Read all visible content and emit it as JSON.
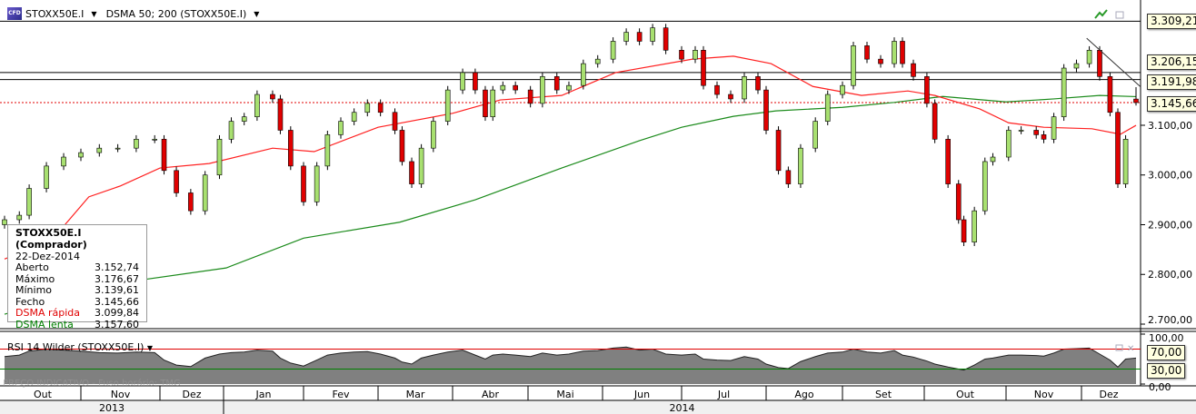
{
  "header": {
    "symbol": "STOXX50E.I",
    "indicator": "DSMA 50; 200 (STOXX50E.I)"
  },
  "legend": {
    "title": "STOXX50E.I (Comprador)",
    "date": "22-Dez-2014",
    "rows": [
      {
        "label": "Aberto",
        "value": "3.152,74"
      },
      {
        "label": "Máximo",
        "value": "3.176,67"
      },
      {
        "label": "Mínimo",
        "value": "3.139,61"
      },
      {
        "label": "Fecho",
        "value": "3.145,66"
      },
      {
        "label": "DSMA rápida",
        "value": "3.099,84"
      },
      {
        "label": "DSMA lenta",
        "value": "3.157,60"
      }
    ]
  },
  "price_tags": [
    "3.309,21",
    "3.206,15",
    "3.191,98",
    "3.145,66"
  ],
  "rsi": {
    "title": "RSI 14 Wilder (STOXX50E.I)",
    "ticks": [
      "100,00",
      "0,00"
    ],
    "tags": [
      "70,00",
      "30,00"
    ]
  },
  "watermark": "PREÇO INDICATIVO - Fuso horário: TMG",
  "months": [
    "Out",
    "Nov",
    "Dez",
    "Jan",
    "Fev",
    "Mar",
    "Abr",
    "Mai",
    "Jun",
    "Jul",
    "Ago",
    "Set",
    "Out",
    "Nov",
    "Dez"
  ],
  "years": [
    "2013",
    "2014"
  ],
  "colors": {
    "up": "#a8e070",
    "down": "#e00000",
    "fast_ma": "#ff2020",
    "slow_ma": "#1a8a1a",
    "rsi_fill": "#808080"
  },
  "chart_data": {
    "type": "candlestick",
    "ylim": [
      2700,
      3352
    ],
    "yticks": [
      "2.700,00",
      "2.800,00",
      "2.900,00",
      "3.000,00",
      "3.100,00"
    ],
    "ytick_values": [
      2700,
      2800,
      2900,
      3000,
      3100
    ],
    "hlines": [
      3309.21,
      3206.15,
      3191.98
    ],
    "last_close_line": 3145.66,
    "last": {
      "date": "2014-12-22",
      "open": 3152.74,
      "high": 3176.67,
      "low": 3139.61,
      "close": 3145.66
    },
    "trendline": [
      [
        "2014-12-03",
        3275
      ],
      [
        "2014-12-22",
        3191.98
      ]
    ],
    "points": [
      [
        "2013-10-01",
        2910,
        55
      ],
      [
        "2013-10-07",
        2919,
        58
      ],
      [
        "2013-10-11",
        2973,
        66
      ],
      [
        "2013-10-18",
        3018,
        70
      ],
      [
        "2013-10-25",
        3036,
        68
      ],
      [
        "2013-11-01",
        3045,
        66
      ],
      [
        "2013-11-08",
        3054,
        63
      ],
      [
        "2013-11-15",
        3054,
        62
      ],
      [
        "2013-11-22",
        3072,
        64
      ],
      [
        "2013-11-29",
        3072,
        63
      ],
      [
        "2013-12-03",
        3009,
        48
      ],
      [
        "2013-12-09",
        2964,
        38
      ],
      [
        "2013-12-16",
        2928,
        35
      ],
      [
        "2013-12-23",
        3000,
        52
      ],
      [
        "2013-12-30",
        3072,
        60
      ],
      [
        "2014-01-04",
        3108,
        63
      ],
      [
        "2014-01-09",
        3117,
        64
      ],
      [
        "2014-01-14",
        3162,
        68
      ],
      [
        "2014-01-20",
        3153,
        66
      ],
      [
        "2014-01-23",
        3090,
        52
      ],
      [
        "2014-01-27",
        3018,
        42
      ],
      [
        "2014-02-01",
        2946,
        36
      ],
      [
        "2014-02-06",
        3018,
        48
      ],
      [
        "2014-02-10",
        3081,
        58
      ],
      [
        "2014-02-15",
        3108,
        62
      ],
      [
        "2014-02-20",
        3126,
        64
      ],
      [
        "2014-02-25",
        3144,
        65
      ],
      [
        "2014-03-02",
        3126,
        60
      ],
      [
        "2014-03-08",
        3090,
        52
      ],
      [
        "2014-03-11",
        3027,
        44
      ],
      [
        "2014-03-15",
        2982,
        40
      ],
      [
        "2014-03-19",
        3054,
        52
      ],
      [
        "2014-03-24",
        3108,
        58
      ],
      [
        "2014-03-30",
        3171,
        64
      ],
      [
        "2014-04-05",
        3206,
        68
      ],
      [
        "2014-04-10",
        3171,
        58
      ],
      [
        "2014-04-14",
        3117,
        50
      ],
      [
        "2014-04-17",
        3171,
        58
      ],
      [
        "2014-04-21",
        3180,
        60
      ],
      [
        "2014-04-26",
        3171,
        58
      ],
      [
        "2014-05-02",
        3144,
        55
      ],
      [
        "2014-05-07",
        3198,
        62
      ],
      [
        "2014-05-13",
        3171,
        58
      ],
      [
        "2014-05-18",
        3180,
        60
      ],
      [
        "2014-05-24",
        3224,
        66
      ],
      [
        "2014-05-30",
        3233,
        67
      ],
      [
        "2014-06-05",
        3269,
        72
      ],
      [
        "2014-06-10",
        3287,
        74
      ],
      [
        "2014-06-15",
        3269,
        68
      ],
      [
        "2014-06-20",
        3296,
        70
      ],
      [
        "2014-06-25",
        3251,
        60
      ],
      [
        "2014-07-01",
        3233,
        58
      ],
      [
        "2014-07-06",
        3251,
        60
      ],
      [
        "2014-07-09",
        3180,
        50
      ],
      [
        "2014-07-14",
        3162,
        48
      ],
      [
        "2014-07-19",
        3153,
        47
      ],
      [
        "2014-07-24",
        3198,
        55
      ],
      [
        "2014-07-29",
        3171,
        50
      ],
      [
        "2014-08-01",
        3090,
        40
      ],
      [
        "2014-08-06",
        3009,
        33
      ],
      [
        "2014-08-10",
        2982,
        31
      ],
      [
        "2014-08-15",
        3054,
        45
      ],
      [
        "2014-08-21",
        3108,
        55
      ],
      [
        "2014-08-26",
        3162,
        62
      ],
      [
        "2014-09-01",
        3180,
        64
      ],
      [
        "2014-09-05",
        3260,
        70
      ],
      [
        "2014-09-10",
        3233,
        64
      ],
      [
        "2014-09-15",
        3224,
        62
      ],
      [
        "2014-09-20",
        3269,
        67
      ],
      [
        "2014-09-23",
        3224,
        58
      ],
      [
        "2014-09-27",
        3198,
        54
      ],
      [
        "2014-10-02",
        3144,
        46
      ],
      [
        "2014-10-05",
        3072,
        40
      ],
      [
        "2014-10-10",
        2982,
        34
      ],
      [
        "2014-10-14",
        2910,
        30
      ],
      [
        "2014-10-16",
        2865,
        28
      ],
      [
        "2014-10-20",
        2928,
        38
      ],
      [
        "2014-10-24",
        3027,
        50
      ],
      [
        "2014-10-27",
        3036,
        52
      ],
      [
        "2014-11-02",
        3090,
        58
      ],
      [
        "2014-11-07",
        3090,
        58
      ],
      [
        "2014-11-13",
        3081,
        57
      ],
      [
        "2014-11-16",
        3072,
        56
      ],
      [
        "2014-11-20",
        3117,
        62
      ],
      [
        "2014-11-24",
        3215,
        70
      ],
      [
        "2014-11-29",
        3224,
        71
      ],
      [
        "2014-12-04",
        3251,
        72
      ],
      [
        "2014-12-08",
        3198,
        60
      ],
      [
        "2014-12-12",
        3126,
        48
      ],
      [
        "2014-12-15",
        2982,
        34
      ],
      [
        "2014-12-18",
        3072,
        50
      ],
      [
        "2014-12-22",
        3145.66,
        52
      ]
    ],
    "fast_ma": [
      [
        "2013-10-01",
        2831
      ],
      [
        "2013-10-20",
        2868
      ],
      [
        "2013-11-04",
        2956
      ],
      [
        "2013-11-16",
        2978
      ],
      [
        "2013-12-01",
        3014
      ],
      [
        "2013-12-25",
        3023
      ],
      [
        "2014-01-20",
        3054
      ],
      [
        "2014-02-05",
        3047
      ],
      [
        "2014-03-01",
        3096
      ],
      [
        "2014-04-01",
        3124
      ],
      [
        "2014-04-20",
        3151
      ],
      [
        "2014-05-15",
        3160
      ],
      [
        "2014-06-06",
        3206
      ],
      [
        "2014-07-05",
        3233
      ],
      [
        "2014-07-20",
        3239
      ],
      [
        "2014-08-03",
        3224
      ],
      [
        "2014-08-20",
        3178
      ],
      [
        "2014-09-08",
        3160
      ],
      [
        "2014-09-25",
        3169
      ],
      [
        "2014-10-05",
        3160
      ],
      [
        "2014-10-22",
        3133
      ],
      [
        "2014-11-02",
        3105
      ],
      [
        "2014-11-16",
        3096
      ],
      [
        "2014-12-05",
        3093
      ],
      [
        "2014-12-16",
        3082
      ],
      [
        "2014-12-22",
        3099.84
      ]
    ],
    "slow_ma": [
      [
        "2013-10-01",
        2720
      ],
      [
        "2013-11-20",
        2786
      ],
      [
        "2014-01-02",
        2813
      ],
      [
        "2014-02-01",
        2873
      ],
      [
        "2014-03-10",
        2905
      ],
      [
        "2014-04-10",
        2950
      ],
      [
        "2014-05-15",
        3014
      ],
      [
        "2014-06-15",
        3069
      ],
      [
        "2014-07-01",
        3096
      ],
      [
        "2014-07-20",
        3118
      ],
      [
        "2014-08-05",
        3129
      ],
      [
        "2014-09-01",
        3136
      ],
      [
        "2014-09-20",
        3146
      ],
      [
        "2014-10-08",
        3158
      ],
      [
        "2014-11-01",
        3147
      ],
      [
        "2014-11-20",
        3153
      ],
      [
        "2014-12-08",
        3160
      ],
      [
        "2014-12-22",
        3157.6
      ]
    ],
    "rsi_levels": [
      70,
      30
    ]
  }
}
